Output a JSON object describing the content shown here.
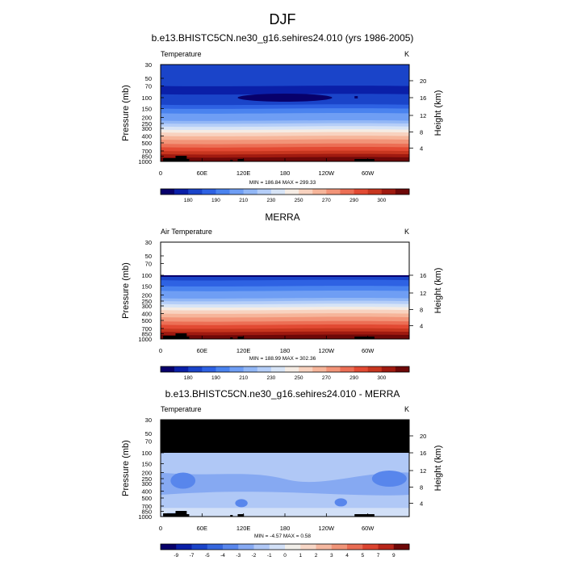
{
  "figure": {
    "title": "DJF"
  },
  "chart_data": [
    {
      "type": "heatmap",
      "title": "b.e13.BHISTC5CN.ne30_g16.sehires24.010 (yrs 1986-2005)",
      "subtitle_left": "Temperature",
      "subtitle_right": "K",
      "ylabel": "Pressure (mb)",
      "y2label": "Height (km)",
      "x_ticks": [
        "0",
        "60E",
        "120E",
        "180",
        "120W",
        "60W"
      ],
      "y_ticks": [
        "30",
        "50",
        "70",
        "100",
        "150",
        "200",
        "250",
        "300",
        "400",
        "500",
        "700",
        "850",
        "1000"
      ],
      "y2_ticks": [
        "20",
        "16",
        "12",
        "8",
        "4"
      ],
      "ylim": [
        1000,
        30
      ],
      "stats": "MIN = 186.84  MAX = 299.33",
      "min": 186.84,
      "max": 299.33,
      "colorbar_labels": [
        "180",
        "190",
        "210",
        "230",
        "250",
        "270",
        "290",
        "300"
      ],
      "missing_above_mb": null,
      "field": "model-temperature"
    },
    {
      "type": "heatmap",
      "title": "MERRA",
      "subtitle_left": "Air Temperature",
      "subtitle_right": "K",
      "ylabel": "Pressure (mb)",
      "y2label": "Height (km)",
      "x_ticks": [
        "0",
        "60E",
        "120E",
        "180",
        "120W",
        "60W"
      ],
      "y_ticks": [
        "30",
        "50",
        "70",
        "100",
        "150",
        "200",
        "250",
        "300",
        "400",
        "500",
        "700",
        "850",
        "1000"
      ],
      "y2_ticks": [
        "16",
        "12",
        "8",
        "4"
      ],
      "ylim": [
        1000,
        30
      ],
      "stats": "MIN = 188.99  MAX = 302.36",
      "min": 188.99,
      "max": 302.36,
      "colorbar_labels": [
        "180",
        "190",
        "210",
        "230",
        "250",
        "270",
        "290",
        "300"
      ],
      "missing_above_mb": 100,
      "missing_fill": "#ffffff",
      "field": "obs-temperature"
    },
    {
      "type": "heatmap",
      "title": "b.e13.BHISTC5CN.ne30_g16.sehires24.010 - MERRA",
      "subtitle_left": "Temperature",
      "subtitle_right": "K",
      "ylabel": "Pressure (mb)",
      "y2label": "Height (km)",
      "x_ticks": [
        "0",
        "60E",
        "120E",
        "180",
        "120W",
        "60W"
      ],
      "y_ticks": [
        "30",
        "50",
        "70",
        "100",
        "150",
        "200",
        "250",
        "300",
        "400",
        "500",
        "700",
        "850",
        "1000"
      ],
      "y2_ticks": [
        "20",
        "16",
        "12",
        "8",
        "4"
      ],
      "ylim": [
        1000,
        30
      ],
      "stats": "MIN = -4.57  MAX =  0.58",
      "min": -4.57,
      "max": 0.58,
      "colorbar_labels": [
        "-9",
        "-7",
        "-5",
        "-4",
        "-3",
        "-2",
        "-1",
        "0",
        "1",
        "2",
        "3",
        "4",
        "5",
        "7",
        "9"
      ],
      "missing_above_mb": 100,
      "missing_fill": "#000000",
      "field": "difference"
    }
  ],
  "colors": {
    "temp_scale": [
      "#08006b",
      "#0a1fa8",
      "#1a44c9",
      "#2e62e3",
      "#4a83ef",
      "#6f9ef4",
      "#92b7f6",
      "#b5cef8",
      "#d7e4f6",
      "#f5ece4",
      "#f8d2bf",
      "#f6b59a",
      "#f29478",
      "#ec6f55",
      "#e24a33",
      "#c7361f",
      "#a01a10",
      "#6e0808"
    ],
    "diff_scale": [
      "#08006b",
      "#0a1fa8",
      "#1a44c9",
      "#3566dd",
      "#5886ec",
      "#86a9f2",
      "#b0c8f6",
      "#d2e0f7",
      "#f1eee9",
      "#f8d7c7",
      "#f5b8a0",
      "#f09478",
      "#e96c53",
      "#db4430",
      "#b8261a",
      "#6e0808"
    ],
    "terrain": "#000000"
  }
}
